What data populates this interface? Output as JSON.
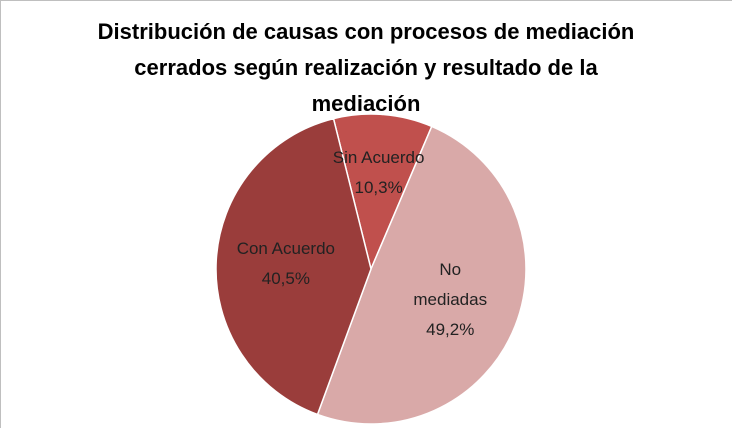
{
  "chart_data": {
    "type": "pie",
    "title": "Distribución de causas con procesos de mediación cerrados según realización y resultado de la mediación",
    "categories": [
      "Sin Acuerdo",
      "No mediadas",
      "Con Acuerdo"
    ],
    "values": [
      10.3,
      49.2,
      40.5
    ],
    "value_labels": [
      "10,3%",
      "49,2%",
      "40,5%"
    ],
    "colors": [
      "#c0504d",
      "#d9a9a8",
      "#9a3d3b"
    ]
  }
}
